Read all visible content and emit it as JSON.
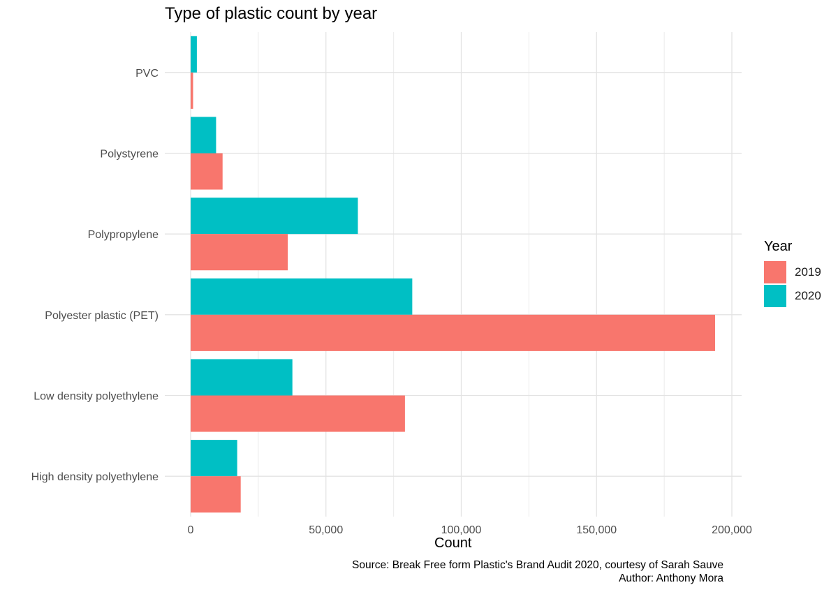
{
  "chart_data": {
    "type": "bar",
    "orientation": "horizontal",
    "title": "Type of plastic count by year",
    "xlabel": "Count",
    "ylabel": "",
    "categories": [
      "PVC",
      "Polystyrene",
      "Polypropylene",
      "Polyester plastic (PET)",
      "Low density polyethylene",
      "High density polyethylene"
    ],
    "series": [
      {
        "name": "2019",
        "color": "#F8766D",
        "values": [
          900,
          11800,
          35900,
          193800,
          79200,
          18500
        ]
      },
      {
        "name": "2020",
        "color": "#00BFC4",
        "values": [
          2300,
          9400,
          61800,
          81900,
          37600,
          17200
        ]
      }
    ],
    "xlim": [
      0,
      202000
    ],
    "x_ticks": [
      0,
      50000,
      100000,
      150000,
      200000
    ],
    "x_tick_labels": [
      "0",
      "50,000",
      "100,000",
      "150,000",
      "200,000"
    ],
    "legend": {
      "title": "Year",
      "position": "right"
    },
    "grid": true
  },
  "caption": {
    "source": "Source: Break Free form Plastic's Brand Audit 2020, courtesy of Sarah Sauve",
    "author": "Author: Anthony Mora"
  }
}
